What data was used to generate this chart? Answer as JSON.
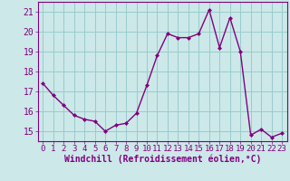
{
  "x": [
    0,
    1,
    2,
    3,
    4,
    5,
    6,
    7,
    8,
    9,
    10,
    11,
    12,
    13,
    14,
    15,
    16,
    17,
    18,
    19,
    20,
    21,
    22,
    23
  ],
  "y": [
    17.4,
    16.8,
    16.3,
    15.8,
    15.6,
    15.5,
    15.0,
    15.3,
    15.4,
    15.9,
    17.3,
    18.8,
    19.9,
    19.7,
    19.7,
    19.9,
    21.1,
    19.2,
    20.7,
    19.0,
    14.8,
    15.1,
    14.7,
    14.9
  ],
  "line_color": "#800080",
  "marker_color": "#800080",
  "bg_color": "#cce8e8",
  "grid_color": "#99cccc",
  "axis_color": "#800080",
  "xlabel": "Windchill (Refroidissement éolien,°C)",
  "xlim_min": -0.5,
  "xlim_max": 23.5,
  "ylim_min": 14.5,
  "ylim_max": 21.5,
  "yticks": [
    15,
    16,
    17,
    18,
    19,
    20,
    21
  ],
  "xticks": [
    0,
    1,
    2,
    3,
    4,
    5,
    6,
    7,
    8,
    9,
    10,
    11,
    12,
    13,
    14,
    15,
    16,
    17,
    18,
    19,
    20,
    21,
    22,
    23
  ],
  "font_color": "#800080",
  "tick_fontsize": 6.5,
  "xlabel_fontsize": 7,
  "linewidth": 1.0,
  "markersize": 2.0
}
